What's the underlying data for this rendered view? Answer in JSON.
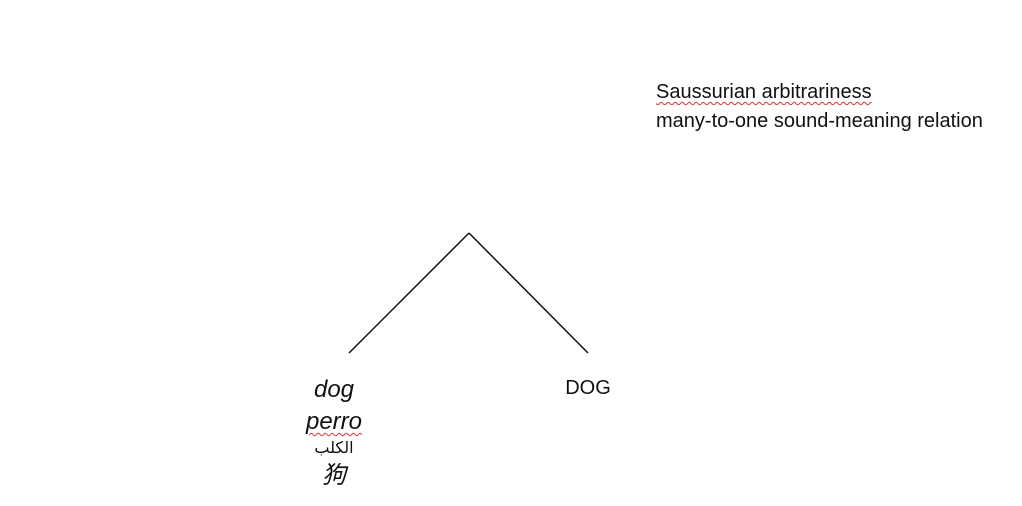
{
  "annotation": {
    "title": "Saussurian arbitrariness",
    "subtitle": "many-to-one sound-meaning relation"
  },
  "signifiers": {
    "english": "dog",
    "spanish": "perro",
    "arabic": "الكلب",
    "chinese": "狗"
  },
  "signified": {
    "label": "DOG"
  },
  "colors": {
    "text": "#111111",
    "line": "#111111",
    "spellcheck_underline": "#e03030"
  }
}
